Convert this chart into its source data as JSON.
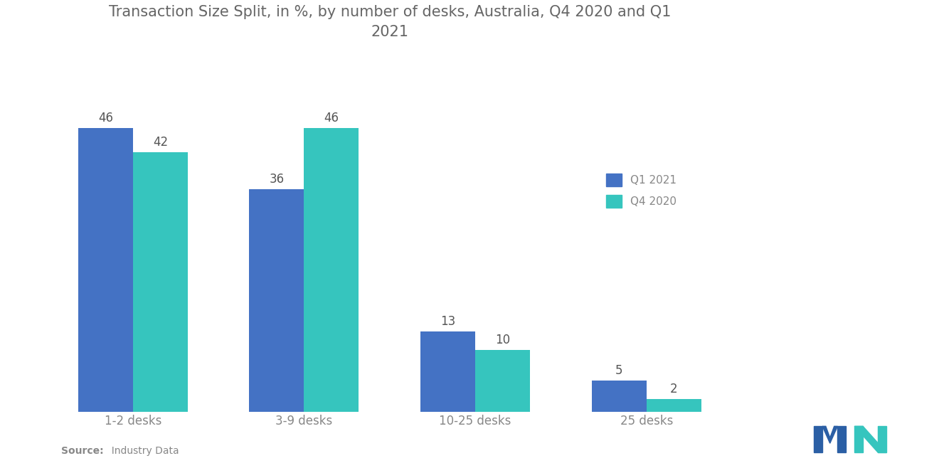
{
  "title": "Transaction Size Split, in %, by number of desks, Australia, Q4 2020 and Q1\n2021",
  "categories": [
    "1-2 desks",
    "3-9 desks",
    "10-25 desks",
    "25 desks"
  ],
  "q1_2021": [
    46,
    36,
    13,
    5
  ],
  "q4_2020": [
    42,
    46,
    10,
    2
  ],
  "q1_color": "#4472C4",
  "q4_color": "#36C5BE",
  "bar_width": 0.32,
  "ylim": [
    0,
    56
  ],
  "title_fontsize": 15,
  "label_fontsize": 12,
  "value_fontsize": 12,
  "legend_labels": [
    "Q1 2021",
    "Q4 2020"
  ],
  "source_bold": "Source:",
  "source_rest": "  Industry Data",
  "background_color": "#ffffff",
  "title_color": "#666666",
  "label_color": "#888888",
  "value_color": "#555555"
}
